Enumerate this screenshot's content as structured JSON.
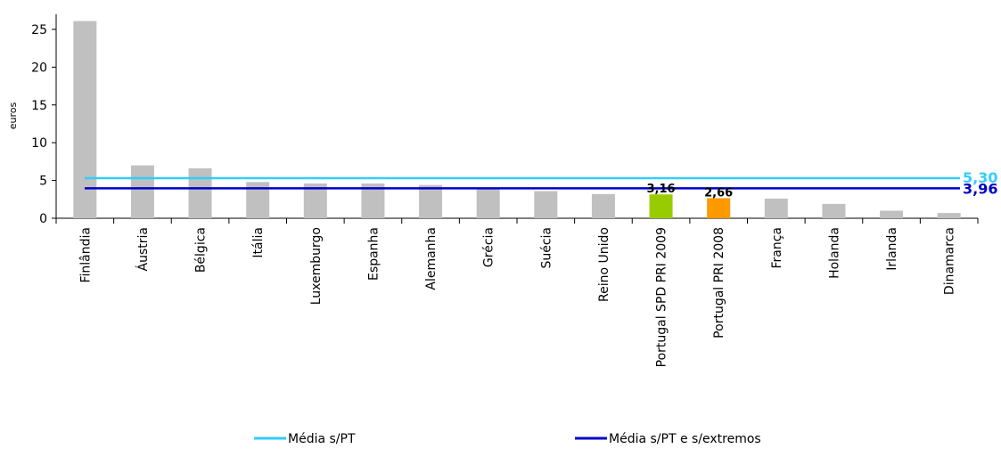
{
  "chart_data": {
    "type": "bar",
    "ylabel": "euros",
    "ylim": [
      0,
      27
    ],
    "yticks": [
      0,
      5,
      10,
      15,
      20,
      25
    ],
    "categories": [
      "Finlândia",
      "Áustria",
      "Bélgica",
      "Itália",
      "Luxemburgo",
      "Espanha",
      "Alemanha",
      "Grécia",
      "Suécia",
      "Reino Unido",
      "Portugal SPD PRI 2009",
      "Portugal PRI 2008",
      "França",
      "Holanda",
      "Irlanda",
      "Dinamarca"
    ],
    "values": [
      26.1,
      7.0,
      6.6,
      4.8,
      4.6,
      4.6,
      4.4,
      4.0,
      3.6,
      3.2,
      3.16,
      2.66,
      2.6,
      1.9,
      1.0,
      0.7
    ],
    "bar_colors": {
      "default": "#c0c0c0",
      "highlight": {
        "Portugal SPD PRI 2009": "#99cc00",
        "Portugal PRI 2008": "#ff9900"
      }
    },
    "data_labels": {
      "Portugal SPD PRI 2009": "3,16",
      "Portugal PRI 2008": "2,66"
    },
    "reference_lines": [
      {
        "name": "Média s/PT",
        "value": 5.3,
        "label": "5,30",
        "color": "#33ccff"
      },
      {
        "name": "Média s/PT e s/extremos",
        "value": 3.96,
        "label": "3,96",
        "color": "#0000cc"
      }
    ],
    "legend_position": "bottom",
    "grid": false
  }
}
